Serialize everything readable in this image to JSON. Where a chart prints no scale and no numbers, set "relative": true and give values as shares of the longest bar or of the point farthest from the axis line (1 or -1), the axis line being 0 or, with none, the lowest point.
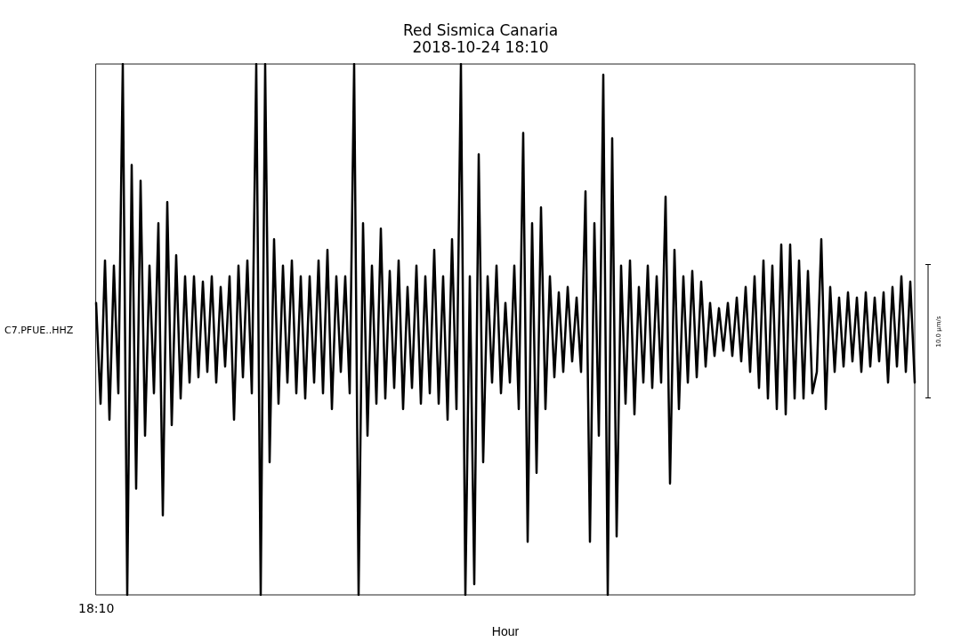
{
  "chart_data": {
    "type": "line",
    "title": "Red Sismica Canaria",
    "subtitle": "2018-10-24 18:10",
    "xlabel": "Hour",
    "ylabel": "C7.PFUE..HHZ",
    "relative": true,
    "annotations": [
      "10.0 µm/s",
      "18:10"
    ],
    "categories": [
      null,
      null,
      null,
      null,
      null,
      null,
      null,
      null,
      null,
      null,
      null,
      null,
      null,
      null,
      null,
      null,
      null,
      null,
      null,
      null,
      null,
      null,
      null,
      null,
      null,
      null,
      null,
      null,
      null,
      null,
      null,
      null,
      null,
      null,
      null,
      null,
      null,
      null,
      null,
      null,
      null,
      null,
      null,
      null,
      null,
      null,
      null,
      null,
      null,
      null,
      null,
      null,
      null,
      null,
      null,
      null,
      null,
      null,
      null,
      null,
      null,
      null,
      null,
      null,
      null,
      null,
      null,
      null,
      null,
      null,
      null,
      null,
      null,
      null,
      null,
      null,
      null,
      null,
      null,
      null,
      null,
      null,
      null,
      null,
      null,
      null,
      null,
      null,
      null,
      null,
      null,
      null,
      null,
      null,
      null,
      null,
      null,
      null,
      null,
      null,
      null,
      null,
      null,
      null,
      null,
      null,
      null,
      null,
      null,
      null,
      null,
      null,
      null,
      null,
      null,
      null,
      null,
      null,
      null,
      null,
      null,
      null,
      null,
      null,
      null,
      null,
      null,
      null,
      null,
      null,
      null,
      null,
      null,
      null,
      null,
      null,
      null,
      null,
      null,
      null,
      null,
      null,
      null,
      null,
      null,
      null,
      null,
      null,
      null,
      null,
      null,
      null,
      null,
      null,
      null,
      null,
      null,
      null,
      null,
      null,
      null,
      null,
      null,
      null,
      null,
      null,
      null,
      null,
      null,
      null,
      null,
      null,
      null,
      null,
      null,
      null,
      null,
      null,
      null,
      null,
      null,
      null,
      null,
      null,
      null
    ],
    "series": [
      {
        "color": "#000000",
        "values": [
          0.55,
          0.36,
          0.63,
          0.33,
          0.62,
          0.38,
          1,
          0,
          0.81,
          0.2,
          0.78,
          0.3,
          0.62,
          0.38,
          0.7,
          0.15,
          0.74,
          0.32,
          0.64,
          0.37,
          0.6,
          0.4,
          0.6,
          0.41,
          0.59,
          0.42,
          0.6,
          0.4,
          0.58,
          0.43,
          0.6,
          0.33,
          0.62,
          0.41,
          0.63,
          0.38,
          1,
          0,
          1,
          0.25,
          0.67,
          0.36,
          0.62,
          0.4,
          0.63,
          0.38,
          0.6,
          0.37,
          0.6,
          0.4,
          0.63,
          0.38,
          0.65,
          0.35,
          0.6,
          0.42,
          0.6,
          0.38,
          1,
          0,
          0.7,
          0.3,
          0.62,
          0.36,
          0.69,
          0.37,
          0.61,
          0.39,
          0.63,
          0.35,
          0.58,
          0.39,
          0.62,
          0.36,
          0.6,
          0.38,
          0.65,
          0.36,
          0.6,
          0.33,
          0.67,
          0.35,
          1,
          0,
          0.6,
          0.02,
          0.83,
          0.25,
          0.6,
          0.4,
          0.62,
          0.38,
          0.55,
          0.4,
          0.62,
          0.35,
          0.87,
          0.1,
          0.7,
          0.23,
          0.73,
          0.35,
          0.6,
          0.41,
          0.57,
          0.42,
          0.58,
          0.44,
          0.56,
          0.42,
          0.76,
          0.1,
          0.7,
          0.3,
          0.98,
          0,
          0.86,
          0.11,
          0.62,
          0.36,
          0.63,
          0.34,
          0.58,
          0.4,
          0.62,
          0.39,
          0.6,
          0.4,
          0.75,
          0.21,
          0.65,
          0.35,
          0.6,
          0.4,
          0.61,
          0.41,
          0.59,
          0.43,
          0.55,
          0.45,
          0.54,
          0.46,
          0.55,
          0.45,
          0.56,
          0.44,
          0.58,
          0.42,
          0.6,
          0.39,
          0.63,
          0.37,
          0.62,
          0.35,
          0.66,
          0.34,
          0.66,
          0.37,
          0.63,
          0.37,
          0.61,
          0.38,
          0.42,
          0.67,
          0.35,
          0.58,
          0.42,
          0.56,
          0.43,
          0.57,
          0.44,
          0.56,
          0.42,
          0.57,
          0.43,
          0.56,
          0.44,
          0.57,
          0.4,
          0.58,
          0.43,
          0.6,
          0.42,
          0.59,
          0.4
        ]
      }
    ]
  }
}
